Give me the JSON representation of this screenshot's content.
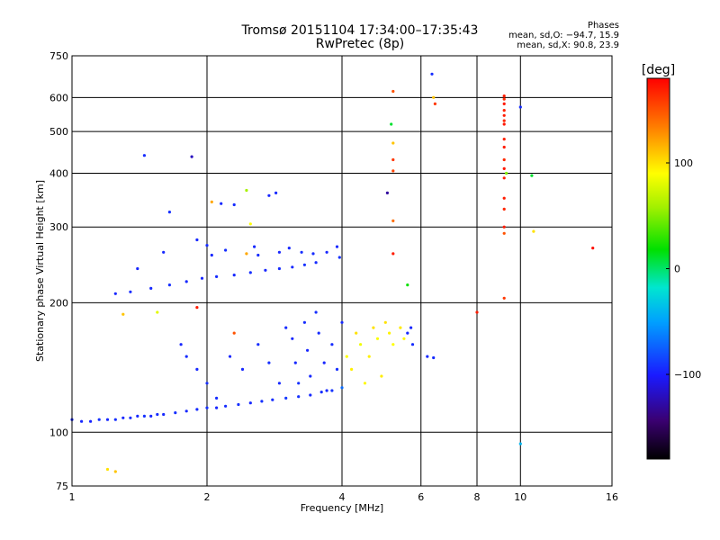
{
  "header": {
    "title": "Tromsø 20151104 17:34:00–17:35:43",
    "subtitle": "RwPretec (8p)"
  },
  "phase_stats": {
    "heading": "Phases",
    "line1": "mean, sd,O: −94.7, 15.9",
    "line2": "mean, sd,X: 90.8, 23.9"
  },
  "colorbar": {
    "label": "[deg]",
    "ticks": [
      "100",
      "0",
      "−100"
    ],
    "tick_values": [
      100,
      0,
      -100
    ],
    "range": [
      -180,
      180
    ]
  },
  "chart_data": {
    "type": "scatter",
    "xlabel": "Frequency [MHz]",
    "ylabel": "Stationary phase Virtual Height [km]",
    "xscale": "log",
    "yscale": "log",
    "xlim": [
      1,
      16
    ],
    "ylim": [
      75,
      750
    ],
    "xticks": [
      1,
      2,
      4,
      6,
      8,
      10,
      16
    ],
    "xtick_labels": [
      "1",
      "2",
      "4",
      "6",
      "8",
      "10",
      "16"
    ],
    "yticks": [
      75,
      100,
      200,
      300,
      400,
      500,
      600,
      750
    ],
    "ytick_labels": [
      "75",
      "100",
      "200",
      "300",
      "400",
      "500",
      "600",
      "750"
    ],
    "grid": true,
    "series": [
      {
        "values_desc": "points as [frequency MHz, virtual height km, phase deg]",
        "points": [
          [
            1.0,
            107,
            -95
          ],
          [
            1.05,
            106,
            -95
          ],
          [
            1.1,
            106,
            -97
          ],
          [
            1.15,
            107,
            -92
          ],
          [
            1.2,
            107,
            -95
          ],
          [
            1.25,
            107,
            -93
          ],
          [
            1.3,
            108,
            -96
          ],
          [
            1.35,
            108,
            -94
          ],
          [
            1.4,
            109,
            -95
          ],
          [
            1.45,
            109,
            -92
          ],
          [
            1.5,
            109,
            -96
          ],
          [
            1.55,
            110,
            -94
          ],
          [
            1.6,
            110,
            -95
          ],
          [
            1.7,
            111,
            -93
          ],
          [
            1.8,
            112,
            -95
          ],
          [
            1.9,
            113,
            -94
          ],
          [
            2.0,
            114,
            -92
          ],
          [
            2.1,
            114,
            -96
          ],
          [
            2.2,
            115,
            -94
          ],
          [
            2.35,
            116,
            -93
          ],
          [
            2.5,
            117,
            -95
          ],
          [
            2.65,
            118,
            -92
          ],
          [
            2.8,
            119,
            -94
          ],
          [
            3.0,
            120,
            -90
          ],
          [
            3.2,
            121,
            -92
          ],
          [
            3.4,
            122,
            -95
          ],
          [
            3.6,
            124,
            -93
          ],
          [
            3.8,
            125,
            -91
          ],
          [
            4.0,
            127,
            -70
          ],
          [
            1.25,
            210,
            -96
          ],
          [
            1.35,
            212,
            -94
          ],
          [
            1.5,
            216,
            -95
          ],
          [
            1.65,
            220,
            -93
          ],
          [
            1.8,
            224,
            -95
          ],
          [
            1.95,
            228,
            -96
          ],
          [
            2.1,
            230,
            -94
          ],
          [
            2.3,
            232,
            -95
          ],
          [
            2.5,
            235,
            -93
          ],
          [
            2.7,
            238,
            -96
          ],
          [
            2.9,
            240,
            -94
          ],
          [
            3.1,
            242,
            -95
          ],
          [
            3.3,
            245,
            -92
          ],
          [
            3.5,
            248,
            -94
          ],
          [
            1.4,
            240,
            -96
          ],
          [
            1.6,
            262,
            -95
          ],
          [
            1.65,
            325,
            -93
          ],
          [
            1.45,
            440,
            -94
          ],
          [
            1.85,
            437,
            -120
          ],
          [
            2.15,
            340,
            -95
          ],
          [
            2.3,
            338,
            -94
          ],
          [
            2.45,
            365,
            60
          ],
          [
            2.75,
            355,
            -96
          ],
          [
            2.85,
            360,
            -95
          ],
          [
            1.9,
            280,
            -95
          ],
          [
            2.0,
            272,
            -94
          ],
          [
            2.05,
            258,
            -96
          ],
          [
            2.2,
            265,
            -93
          ],
          [
            2.55,
            270,
            -95
          ],
          [
            2.6,
            258,
            -94
          ],
          [
            2.9,
            262,
            -96
          ],
          [
            3.05,
            268,
            -95
          ],
          [
            3.25,
            262,
            -93
          ],
          [
            3.45,
            260,
            -94
          ],
          [
            3.7,
            262,
            -96
          ],
          [
            3.9,
            270,
            -95
          ],
          [
            3.95,
            255,
            -92
          ],
          [
            1.75,
            160,
            -96
          ],
          [
            1.8,
            150,
            -94
          ],
          [
            1.9,
            140,
            -95
          ],
          [
            2.0,
            130,
            -93
          ],
          [
            2.1,
            120,
            -94
          ],
          [
            2.25,
            150,
            -96
          ],
          [
            2.4,
            140,
            -95
          ],
          [
            2.6,
            160,
            -94
          ],
          [
            2.75,
            145,
            -93
          ],
          [
            2.9,
            130,
            -95
          ],
          [
            3.0,
            175,
            -94
          ],
          [
            3.1,
            165,
            -96
          ],
          [
            3.15,
            145,
            -95
          ],
          [
            3.2,
            130,
            -92
          ],
          [
            3.3,
            180,
            -94
          ],
          [
            3.35,
            155,
            -96
          ],
          [
            3.4,
            135,
            -95
          ],
          [
            3.5,
            190,
            -93
          ],
          [
            3.55,
            170,
            -94
          ],
          [
            3.65,
            145,
            -96
          ],
          [
            3.7,
            125,
            -95
          ],
          [
            3.8,
            160,
            -94
          ],
          [
            3.9,
            140,
            -93
          ],
          [
            4.0,
            180,
            -95
          ],
          [
            4.1,
            150,
            90
          ],
          [
            4.2,
            140,
            95
          ],
          [
            4.3,
            170,
            100
          ],
          [
            4.4,
            160,
            85
          ],
          [
            4.5,
            130,
            92
          ],
          [
            4.6,
            150,
            95
          ],
          [
            4.7,
            175,
            100
          ],
          [
            4.8,
            165,
            88
          ],
          [
            4.9,
            135,
            96
          ],
          [
            5.0,
            180,
            100
          ],
          [
            5.1,
            170,
            94
          ],
          [
            5.2,
            160,
            90
          ],
          [
            5.4,
            175,
            97
          ],
          [
            5.5,
            165,
            93
          ],
          [
            5.6,
            170,
            -95
          ],
          [
            5.75,
            160,
            -94
          ],
          [
            5.7,
            175,
            -96
          ],
          [
            6.2,
            150,
            -95
          ],
          [
            6.4,
            149,
            -94
          ],
          [
            5.2,
            620,
            150
          ],
          [
            5.2,
            470,
            110
          ],
          [
            5.2,
            430,
            160
          ],
          [
            5.2,
            405,
            155
          ],
          [
            5.2,
            310,
            140
          ],
          [
            5.2,
            260,
            170
          ],
          [
            5.15,
            520,
            10
          ],
          [
            5.05,
            360,
            -130
          ],
          [
            5.6,
            220,
            20
          ],
          [
            6.35,
            680,
            -94
          ],
          [
            6.4,
            600,
            110
          ],
          [
            6.45,
            580,
            160
          ],
          [
            9.2,
            605,
            170
          ],
          [
            9.2,
            595,
            165
          ],
          [
            9.2,
            580,
            172
          ],
          [
            9.2,
            560,
            168
          ],
          [
            9.2,
            545,
            170
          ],
          [
            9.2,
            530,
            166
          ],
          [
            9.2,
            520,
            172
          ],
          [
            9.2,
            480,
            168
          ],
          [
            9.2,
            460,
            170
          ],
          [
            9.2,
            430,
            165
          ],
          [
            9.2,
            410,
            172
          ],
          [
            9.2,
            390,
            168
          ],
          [
            9.2,
            350,
            170
          ],
          [
            9.2,
            330,
            166
          ],
          [
            9.2,
            300,
            170
          ],
          [
            9.2,
            290,
            150
          ],
          [
            9.2,
            205,
            160
          ],
          [
            9.3,
            400,
            50
          ],
          [
            10.0,
            570,
            -94
          ],
          [
            10.0,
            94,
            -40
          ],
          [
            10.6,
            395,
            10
          ],
          [
            10.7,
            293,
            100
          ],
          [
            8.0,
            190,
            170
          ],
          [
            14.5,
            268,
            175
          ],
          [
            1.2,
            82,
            100
          ],
          [
            1.25,
            81,
            110
          ],
          [
            1.3,
            188,
            110
          ],
          [
            1.55,
            190,
            80
          ],
          [
            1.9,
            195,
            170
          ],
          [
            2.45,
            260,
            120
          ],
          [
            2.3,
            170,
            150
          ],
          [
            2.05,
            343,
            120
          ],
          [
            2.5,
            305,
            90
          ]
        ]
      }
    ]
  }
}
